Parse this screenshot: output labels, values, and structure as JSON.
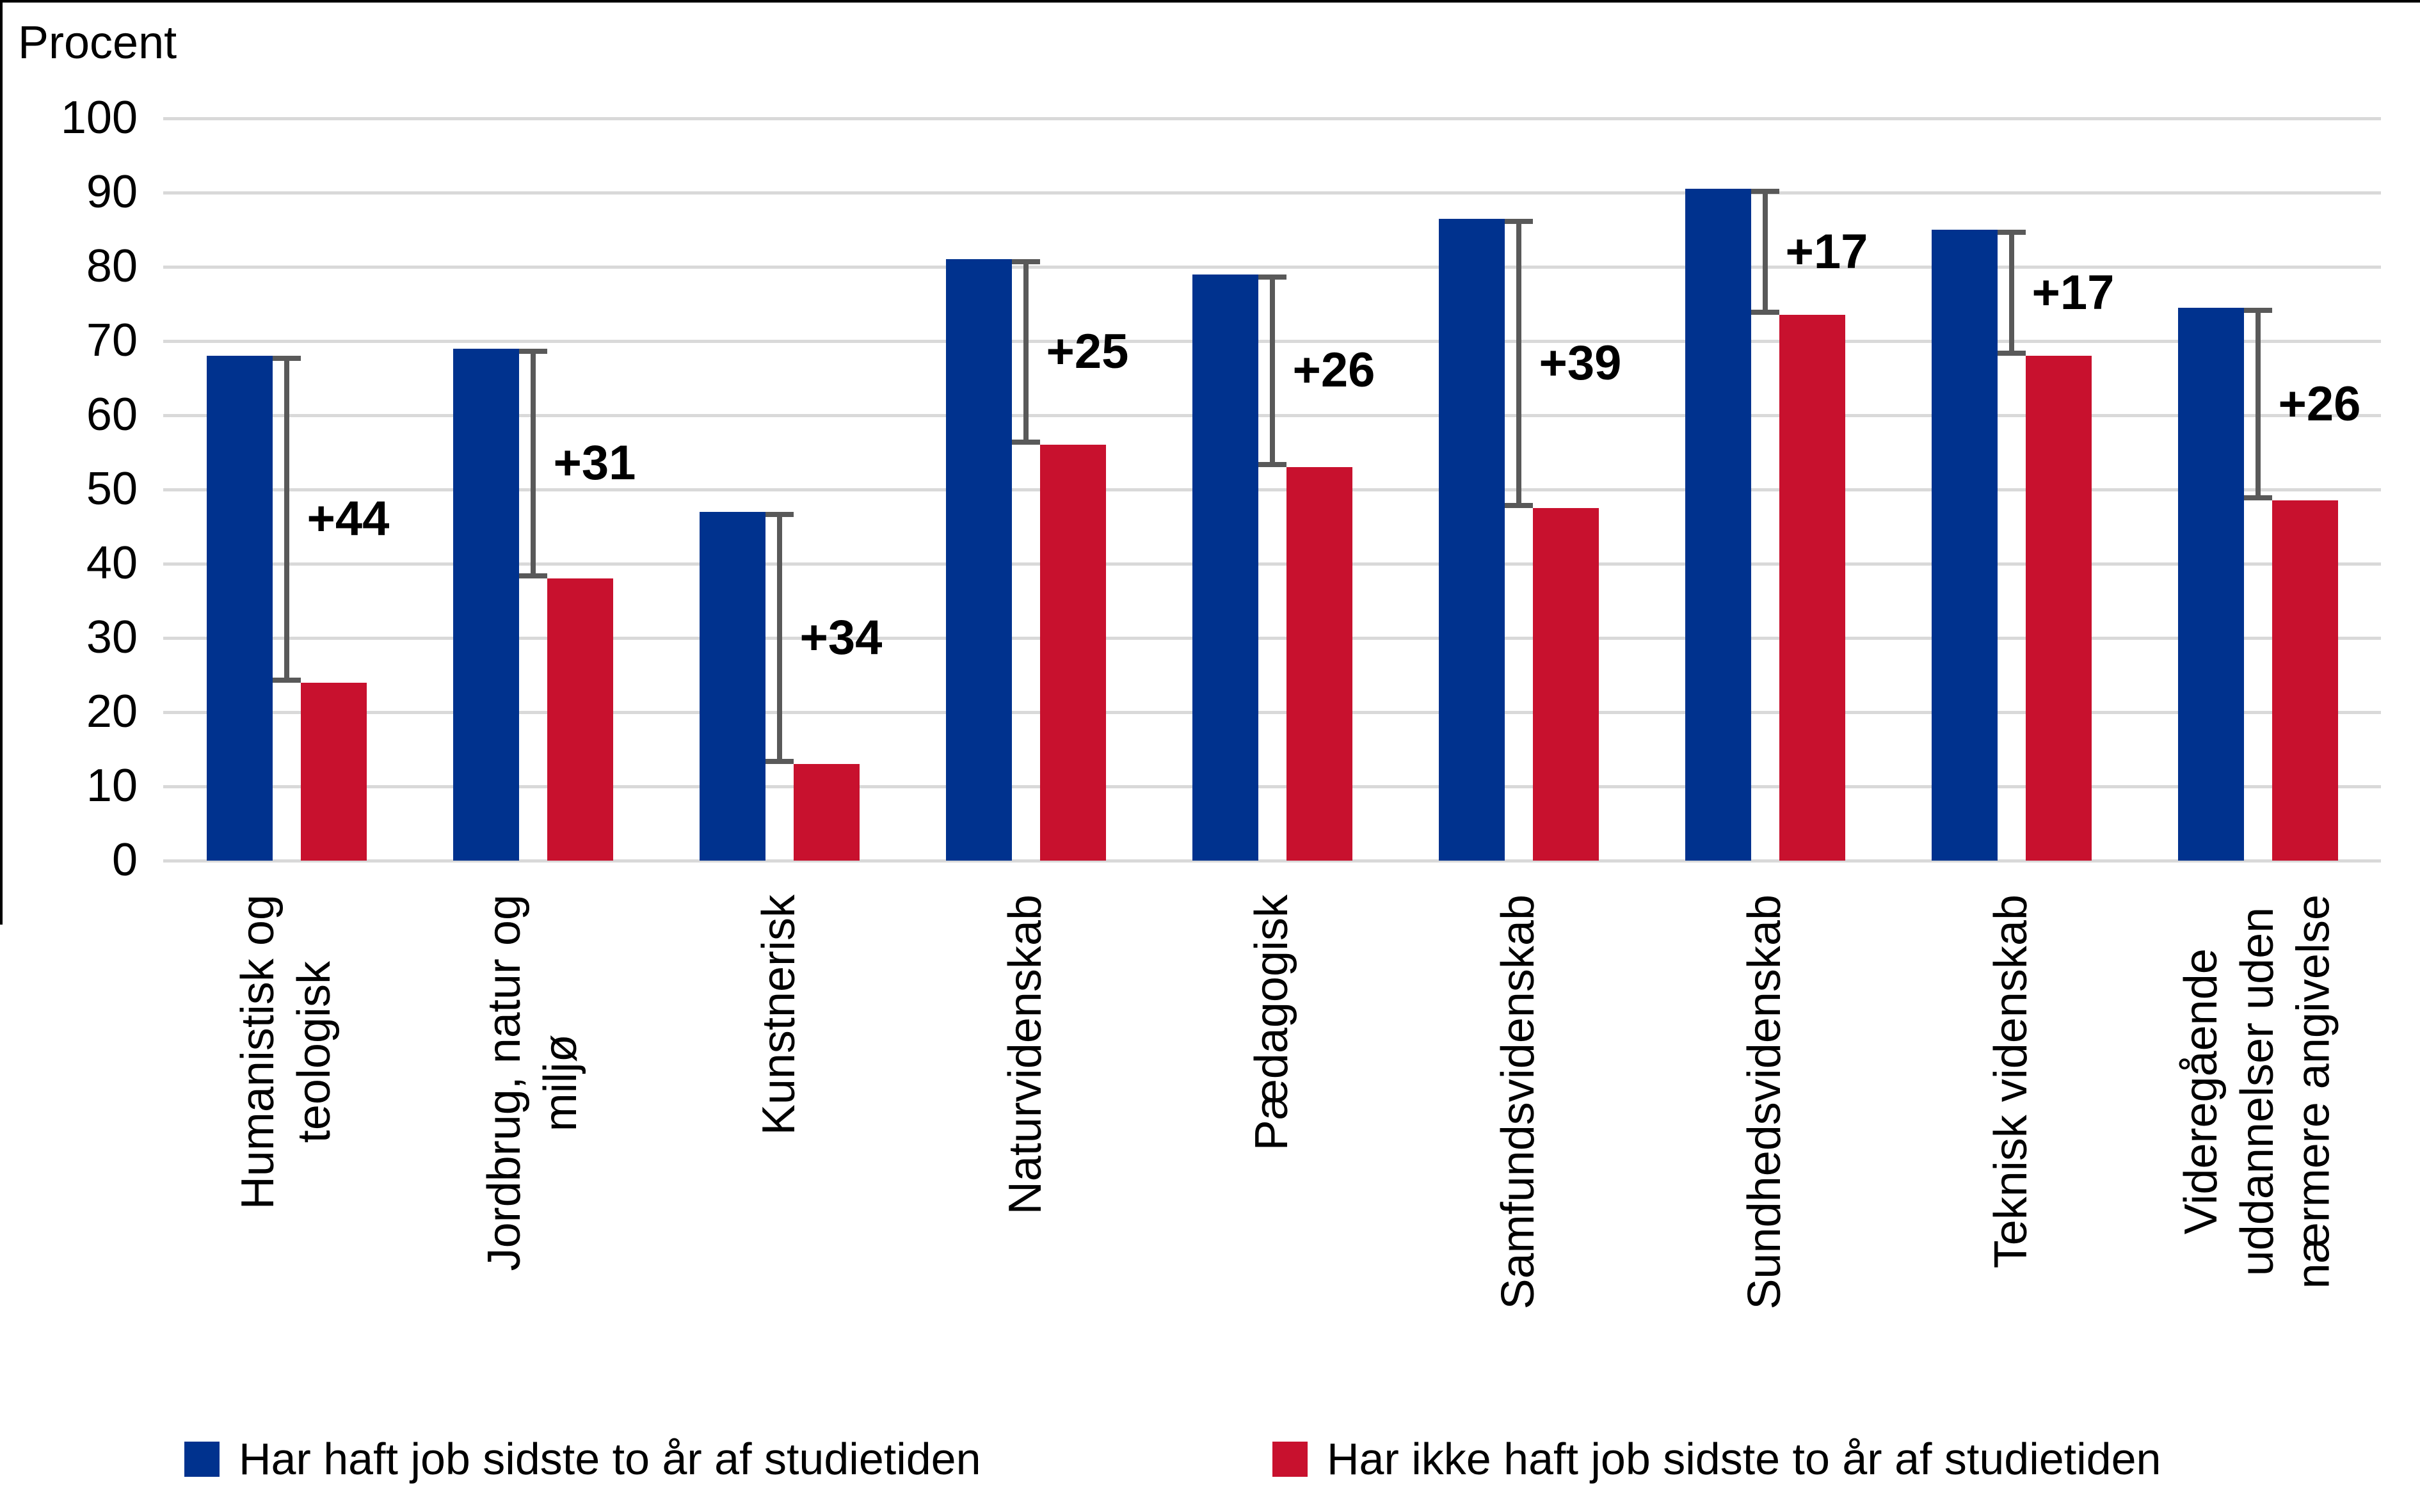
{
  "chart_data": {
    "type": "bar",
    "ylabel": "Procent",
    "categories": [
      "Humanistisk og\nteologisk",
      "Jordbrug, natur og\nmiljø",
      "Kunstnerisk",
      "Naturvidenskab",
      "Pædagogisk",
      "Samfundsvidenskab",
      "Sundhedsvidenskab",
      "Teknisk videnskab",
      "Videregående\nuddannelser uden\nnærmere angivelse"
    ],
    "series": [
      {
        "name": "Har haft job sidste to år af studietiden",
        "color": "#00328E",
        "values": [
          68,
          69,
          47,
          81,
          79,
          86.5,
          90.5,
          85,
          74.5
        ]
      },
      {
        "name": "Har ikke haft job sidste to år af studietiden",
        "color": "#C8112E",
        "values": [
          24,
          38,
          13,
          56,
          53,
          47.5,
          73.5,
          68,
          48.5
        ]
      }
    ],
    "diff_labels": [
      "+44",
      "+31",
      "+34",
      "+25",
      "+26",
      "+39",
      "+17",
      "+17",
      "+26"
    ],
    "ylim": [
      0,
      100
    ],
    "yticks": [
      0,
      10,
      20,
      30,
      40,
      50,
      60,
      70,
      80,
      90,
      100
    ],
    "grid": true,
    "legend_position": "bottom",
    "colors": {
      "grid": "#D9D9D9",
      "bracket": "#595959",
      "text": "#000000"
    }
  }
}
